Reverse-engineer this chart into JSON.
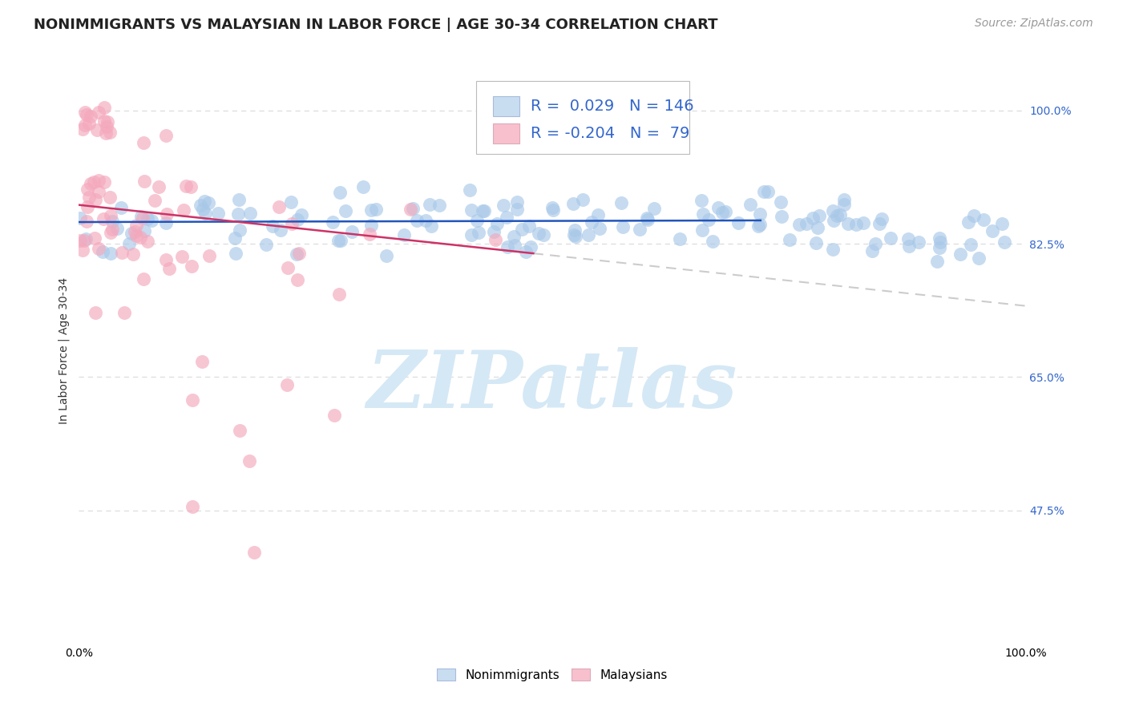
{
  "title": "NONIMMIGRANTS VS MALAYSIAN IN LABOR FORCE | AGE 30-34 CORRELATION CHART",
  "source": "Source: ZipAtlas.com",
  "ylabel": "In Labor Force | Age 30-34",
  "xlim": [
    0.0,
    1.0
  ],
  "ylim": [
    0.3,
    1.07
  ],
  "yticks": [
    0.475,
    0.65,
    0.825,
    1.0
  ],
  "ytick_labels": [
    "47.5%",
    "65.0%",
    "82.5%",
    "100.0%"
  ],
  "blue_R": 0.029,
  "blue_N": 146,
  "pink_R": -0.204,
  "pink_N": 79,
  "blue_scatter_color": "#a8c8e8",
  "pink_scatter_color": "#f4a8bc",
  "blue_line_color": "#2255bb",
  "pink_line_color": "#cc3366",
  "dash_line_color": "#cccccc",
  "legend_blue_fill": "#c8ddf0",
  "legend_pink_fill": "#f8c0cc",
  "watermark_color": "#d5e8f5",
  "background_color": "#ffffff",
  "grid_color": "#dddddd",
  "title_color": "#222222",
  "tick_color": "#3366cc",
  "source_color": "#999999",
  "ylabel_color": "#333333",
  "title_fontsize": 13,
  "source_fontsize": 10,
  "label_fontsize": 10,
  "tick_fontsize": 10,
  "legend_fontsize": 14
}
